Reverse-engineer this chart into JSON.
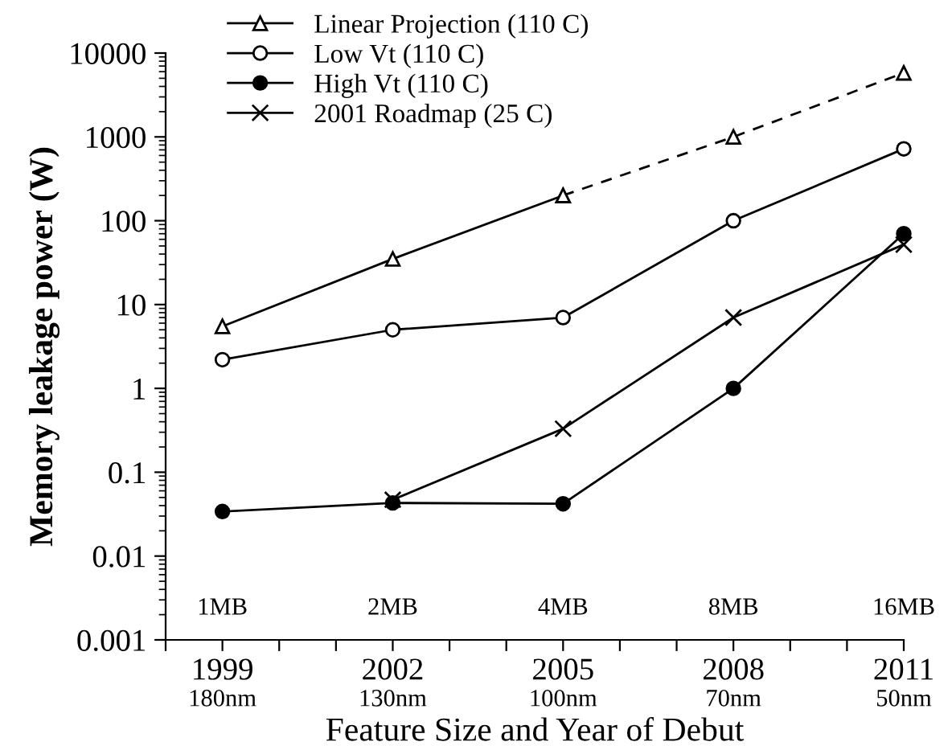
{
  "chart_data": {
    "type": "line",
    "xlabel": "Feature Size and Year of Debut",
    "ylabel": "Memory leakage power (W)",
    "log": "y",
    "xlim": [
      1998,
      2011
    ],
    "ylim": [
      0.001,
      10000
    ],
    "xticks": [
      {
        "value": 1998,
        "label": null
      },
      1999,
      {
        "value": 2000,
        "label": null
      },
      {
        "value": 2001,
        "label": null
      },
      2002,
      {
        "value": 2003,
        "label": null
      },
      {
        "value": 2004,
        "label": null
      },
      2005,
      {
        "value": 2006,
        "label": null
      },
      {
        "value": 2007,
        "label": null
      },
      2008,
      {
        "value": 2009,
        "label": null
      },
      {
        "value": 2010,
        "label": null
      },
      2011
    ],
    "yticks": [
      0.001,
      0.01,
      0.1,
      1,
      10,
      100,
      1000,
      10000
    ],
    "grid": false,
    "legend": "top left",
    "series": [
      {
        "name": "Linear Projection (110 C)",
        "color": "#000000",
        "marker": "triangle",
        "line_style": "solid",
        "x": [
          1999,
          2002,
          2005
        ],
        "values": [
          5.5,
          35,
          200
        ]
      },
      {
        "color": "#000000",
        "marker": "triangle",
        "line_style": "dashed",
        "x": [
          2005,
          2008,
          2011
        ],
        "values": [
          200,
          1000,
          5800
        ]
      },
      {
        "name": "Low Vt (110 C)",
        "color": "#000000",
        "marker": "circle",
        "line_style": "solid",
        "x": [
          1999,
          2002,
          2005,
          2008,
          2011
        ],
        "values": [
          2.2,
          5,
          7,
          100,
          720
        ]
      },
      {
        "name": "High Vt (110 C)",
        "color": "#000000",
        "marker": "filled_circle",
        "line_style": "solid",
        "x": [
          1999,
          2002,
          2005,
          2008,
          2011
        ],
        "values": [
          0.034,
          0.043,
          0.042,
          1.0,
          70
        ]
      },
      {
        "name": "2001 Roadmap (25 C)",
        "color": "#000000",
        "marker": "cross",
        "line_style": "solid",
        "x": [
          2002,
          2005,
          2008,
          2011
        ],
        "values": [
          0.047,
          0.33,
          7,
          52
        ]
      }
    ],
    "annotations": [
      "1MB",
      "2MB",
      "4MB",
      "8MB",
      "16MB",
      "180nm",
      "130nm",
      "100nm",
      "70nm",
      "50nm"
    ]
  }
}
